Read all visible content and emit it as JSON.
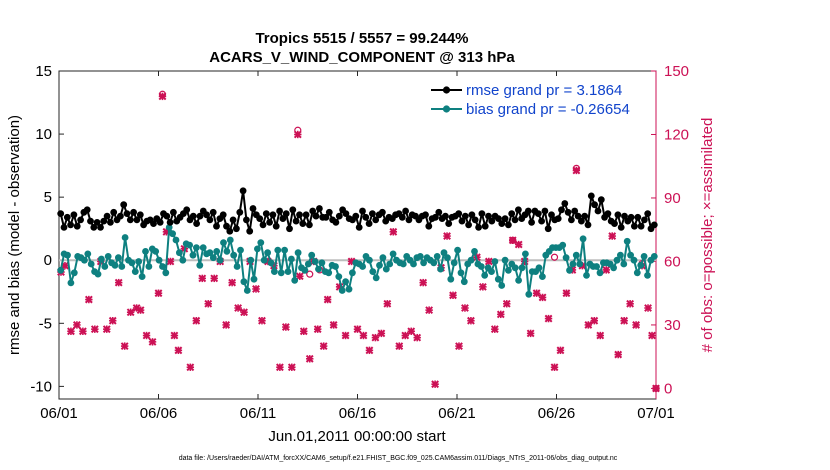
{
  "chart_data": {
    "type": "line",
    "title": "Tropics 5515 / 5557 = 99.244%",
    "subtitle": "ACARS_V_WIND_COMPONENT @ 313 hPa",
    "xlabel": "Jun.01,2011 00:00:00 start",
    "ylabel": "rmse and bias (model - observation)",
    "ylabel_right": "# of obs: o=possible; ×=assimilated",
    "footnote": "data file: /Users/raeder/DAI/ATM_forcXX/CAM6_setup/f.e21.FHIST_BGC.f09_025.CAM6assim.011/Diags_NTrS_2011-06/obs_diag_output.nc",
    "xlim": [
      0,
      30
    ],
    "ylim": [
      -11,
      15
    ],
    "ylim_right": [
      -5,
      150
    ],
    "x_ticks": [
      "06/01",
      "06/06",
      "06/11",
      "06/16",
      "06/21",
      "06/26",
      "07/01"
    ],
    "y_ticks": [
      "15",
      "10",
      "5",
      "0",
      "-5",
      "-10"
    ],
    "y_ticks_right": [
      "150",
      "120",
      "90",
      "60",
      "30",
      "0"
    ],
    "zero_line": 0,
    "colors": {
      "rmse": "#000000",
      "bias": "#0e8080",
      "obs": "#cc1155",
      "legend_text": "#1144cc"
    },
    "series": [
      {
        "name": "rmse grand pr = 3.1864",
        "values": [
          3.7,
          2.6,
          3.4,
          2.8,
          3.6,
          2.7,
          3.2,
          3.8,
          4.0,
          3.1,
          2.6,
          3.0,
          2.6,
          3.1,
          3.5,
          3.0,
          3.8,
          3.2,
          3.5,
          4.4,
          3.7,
          3.2,
          3.8,
          3.2,
          3.6,
          2.8,
          3.1,
          3.2,
          2.9,
          3.3,
          3.0,
          3.7,
          3.5,
          3.0,
          3.8,
          3.1,
          3.4,
          3.7,
          4.0,
          3.2,
          3.5,
          2.9,
          3.5,
          3.9,
          3.6,
          3.2,
          3.8,
          2.7,
          3.3,
          3.6,
          2.7,
          2.3,
          3.2,
          2.5,
          3.8,
          5.5,
          3.2,
          2.3,
          4.1,
          3.6,
          3.3,
          2.8,
          3.7,
          3.0,
          3.6,
          2.7,
          3.9,
          3.3,
          3.7,
          2.5,
          4.0,
          3.1,
          3.6,
          2.9,
          3.6,
          2.8,
          3.9,
          3.5,
          4.1,
          3.4,
          3.4,
          3.8,
          3.2,
          3.0,
          3.5,
          4.0,
          3.7,
          3.3,
          3.2,
          3.5,
          2.6,
          3.9,
          3.4,
          2.9,
          3.7,
          3.2,
          3.6,
          3.8,
          3.1,
          3.4,
          3.3,
          3.6,
          3.7,
          3.4,
          3.9,
          3.2,
          3.6,
          3.5,
          3.2,
          3.5,
          3.6,
          2.7,
          3.3,
          3.4,
          3.8,
          3.3,
          3.5,
          2.9,
          3.4,
          3.5,
          3.7,
          3.1,
          3.5,
          2.8,
          3.6,
          3.2,
          2.6,
          3.7,
          2.7,
          3.5,
          3.1,
          3.5,
          3.3,
          2.9,
          3.3,
          2.8,
          3.7,
          3.2,
          4.0,
          3.3,
          3.6,
          3.9,
          3.0,
          3.9,
          3.7,
          3.1,
          3.9,
          2.5,
          3.6,
          3.2,
          3.3,
          4.0,
          4.5,
          3.8,
          3.2,
          3.9,
          3.5,
          3.1,
          3.5,
          2.8,
          5.1,
          4.4,
          3.9,
          4.8,
          3.4,
          3.7,
          3.1,
          2.9,
          3.6,
          2.6,
          3.5,
          3.1,
          3.4,
          2.7,
          3.4,
          2.7,
          3.2,
          3.7,
          2.5,
          2.8
        ]
      },
      {
        "name": "bias grand pr = -0.26654",
        "values": [
          -0.8,
          0.5,
          0.4,
          -1.8,
          -1.0,
          0.3,
          0.2,
          0.0,
          0.5,
          -0.3,
          -0.9,
          -1.1,
          0.1,
          -0.5,
          0.3,
          -0.2,
          -0.4,
          0.2,
          -0.5,
          1.8,
          0.0,
          -0.2,
          -0.9,
          -0.1,
          -1.3,
          0.7,
          -0.5,
          0.9,
          0.7,
          0.0,
          -0.5,
          -1.0,
          2.6,
          2.1,
          1.6,
          0.6,
          0.0,
          1.3,
          1.2,
          0.4,
          1.0,
          -0.4,
          1.0,
          0.5,
          0.6,
          0.2,
          0.7,
          0.0,
          1.4,
          0.7,
          1.6,
          0.4,
          -0.5,
          0.8,
          -1.7,
          -2.4,
          0.0,
          -1.5,
          0.9,
          1.4,
          0.0,
          0.6,
          -0.2,
          -0.9,
          0.8,
          -1.0,
          0.8,
          -0.9,
          0.1,
          -1.6,
          0.6,
          -0.6,
          -0.8,
          -0.3,
          0.4,
          -0.1,
          -0.7,
          -0.2,
          -0.9,
          -1.0,
          -0.4,
          -0.5,
          -1.3,
          -2.4,
          -1.7,
          -2.3,
          -1.0,
          -0.2,
          -0.3,
          -0.5,
          0.3,
          0.0,
          -0.9,
          -1.4,
          -0.4,
          0.2,
          -0.7,
          -0.3,
          0.5,
          0.0,
          -0.2,
          -0.3,
          0.3,
          0.0,
          -0.3,
          0.2,
          0.3,
          -0.2,
          0.2,
          0.0,
          -0.2,
          0.3,
          -0.7,
          0.6,
          0.2,
          -1.5,
          -0.2,
          0.8,
          -1.0,
          -1.7,
          -0.3,
          0.0,
          0.7,
          -0.3,
          -0.5,
          -1.2,
          -0.6,
          -0.9,
          -0.1,
          -1.5,
          -2.0,
          0.0,
          -0.8,
          -0.3,
          -0.6,
          -1.6,
          -0.6,
          0.5,
          -2.7,
          -0.9,
          -0.9,
          -0.6,
          -1.3,
          0.4,
          0.7,
          1.0,
          1.0,
          1.0,
          1.2,
          0.2,
          -0.8,
          -0.3,
          0.4,
          -0.3,
          1.7,
          -1.2,
          -0.3,
          -0.5,
          -0.5,
          -1.0,
          -0.2,
          -0.2,
          -0.3,
          -0.6,
          0.0,
          0.4,
          -0.3,
          1.5,
          0.4,
          0.0,
          -1.0,
          -0.4,
          0.3,
          -1.2,
          0.0,
          0.3
        ]
      }
    ],
    "obs_assimilated": [
      {
        "x": 0.1,
        "v": 55
      },
      {
        "x": 0.3,
        "v": 58
      },
      {
        "x": 0.6,
        "v": 27
      },
      {
        "x": 0.9,
        "v": 30
      },
      {
        "x": 1.2,
        "v": 27
      },
      {
        "x": 1.5,
        "v": 42
      },
      {
        "x": 1.8,
        "v": 28
      },
      {
        "x": 2.1,
        "v": 60
      },
      {
        "x": 2.4,
        "v": 28
      },
      {
        "x": 2.7,
        "v": 32
      },
      {
        "x": 3.0,
        "v": 50
      },
      {
        "x": 3.3,
        "v": 20
      },
      {
        "x": 3.6,
        "v": 36
      },
      {
        "x": 3.9,
        "v": 38
      },
      {
        "x": 4.1,
        "v": 37
      },
      {
        "x": 4.4,
        "v": 25
      },
      {
        "x": 4.7,
        "v": 22
      },
      {
        "x": 5.0,
        "v": 45
      },
      {
        "x": 5.2,
        "v": 138
      },
      {
        "x": 5.4,
        "v": 74
      },
      {
        "x": 5.6,
        "v": 60
      },
      {
        "x": 5.8,
        "v": 25
      },
      {
        "x": 6.0,
        "v": 18
      },
      {
        "x": 6.3,
        "v": 66
      },
      {
        "x": 6.6,
        "v": 10
      },
      {
        "x": 6.9,
        "v": 32
      },
      {
        "x": 7.2,
        "v": 52
      },
      {
        "x": 7.5,
        "v": 40
      },
      {
        "x": 7.8,
        "v": 52
      },
      {
        "x": 8.1,
        "v": 60
      },
      {
        "x": 8.4,
        "v": 30
      },
      {
        "x": 8.7,
        "v": 50
      },
      {
        "x": 9.0,
        "v": 38
      },
      {
        "x": 9.3,
        "v": 36
      },
      {
        "x": 9.6,
        "v": 60
      },
      {
        "x": 9.9,
        "v": 47
      },
      {
        "x": 10.2,
        "v": 32
      },
      {
        "x": 10.5,
        "v": 60
      },
      {
        "x": 10.8,
        "v": 58
      },
      {
        "x": 11.1,
        "v": 10
      },
      {
        "x": 11.4,
        "v": 29
      },
      {
        "x": 11.7,
        "v": 10
      },
      {
        "x": 12.0,
        "v": 120
      },
      {
        "x": 12.1,
        "v": 53
      },
      {
        "x": 12.3,
        "v": 27
      },
      {
        "x": 12.6,
        "v": 14
      },
      {
        "x": 12.8,
        "v": 60
      },
      {
        "x": 13.0,
        "v": 28
      },
      {
        "x": 13.3,
        "v": 20
      },
      {
        "x": 13.5,
        "v": 42
      },
      {
        "x": 13.8,
        "v": 30
      },
      {
        "x": 14.1,
        "v": 48
      },
      {
        "x": 14.4,
        "v": 25
      },
      {
        "x": 14.7,
        "v": 60
      },
      {
        "x": 15.0,
        "v": 28
      },
      {
        "x": 15.3,
        "v": 25
      },
      {
        "x": 15.6,
        "v": 18
      },
      {
        "x": 15.9,
        "v": 24
      },
      {
        "x": 16.2,
        "v": 26
      },
      {
        "x": 16.5,
        "v": 40
      },
      {
        "x": 16.8,
        "v": 74
      },
      {
        "x": 17.1,
        "v": 20
      },
      {
        "x": 17.4,
        "v": 25
      },
      {
        "x": 17.7,
        "v": 27
      },
      {
        "x": 18.0,
        "v": 24
      },
      {
        "x": 18.3,
        "v": 50
      },
      {
        "x": 18.6,
        "v": 37
      },
      {
        "x": 18.9,
        "v": 2
      },
      {
        "x": 19.2,
        "v": 57
      },
      {
        "x": 19.5,
        "v": 72
      },
      {
        "x": 19.8,
        "v": 44
      },
      {
        "x": 20.1,
        "v": 20
      },
      {
        "x": 20.4,
        "v": 38
      },
      {
        "x": 20.7,
        "v": 32
      },
      {
        "x": 21.0,
        "v": 62
      },
      {
        "x": 21.3,
        "v": 48
      },
      {
        "x": 21.6,
        "v": 60
      },
      {
        "x": 21.9,
        "v": 28
      },
      {
        "x": 22.2,
        "v": 35
      },
      {
        "x": 22.5,
        "v": 40
      },
      {
        "x": 22.8,
        "v": 70
      },
      {
        "x": 23.1,
        "v": 68
      },
      {
        "x": 23.4,
        "v": 60
      },
      {
        "x": 23.7,
        "v": 26
      },
      {
        "x": 24.0,
        "v": 45
      },
      {
        "x": 24.3,
        "v": 43
      },
      {
        "x": 24.6,
        "v": 33
      },
      {
        "x": 24.9,
        "v": 10
      },
      {
        "x": 25.2,
        "v": 18
      },
      {
        "x": 25.5,
        "v": 45
      },
      {
        "x": 25.8,
        "v": 56
      },
      {
        "x": 26.0,
        "v": 103
      },
      {
        "x": 26.3,
        "v": 58
      },
      {
        "x": 26.6,
        "v": 30
      },
      {
        "x": 26.9,
        "v": 32
      },
      {
        "x": 27.2,
        "v": 25
      },
      {
        "x": 27.5,
        "v": 56
      },
      {
        "x": 27.8,
        "v": 72
      },
      {
        "x": 28.1,
        "v": 16
      },
      {
        "x": 28.4,
        "v": 32
      },
      {
        "x": 28.7,
        "v": 40
      },
      {
        "x": 29.0,
        "v": 30
      },
      {
        "x": 29.3,
        "v": 58
      },
      {
        "x": 29.6,
        "v": 38
      },
      {
        "x": 29.8,
        "v": 25
      },
      {
        "x": 30.0,
        "v": 0
      }
    ],
    "obs_possible": [
      {
        "x": 5.2,
        "v": 139
      },
      {
        "x": 12.0,
        "v": 122
      },
      {
        "x": 13.1,
        "v": 56
      },
      {
        "x": 22.8,
        "v": 70
      },
      {
        "x": 26.0,
        "v": 104
      },
      {
        "x": 29.3,
        "v": 59
      },
      {
        "x": 30.0,
        "v": 0
      },
      {
        "x": 12.6,
        "v": 54
      },
      {
        "x": 24.9,
        "v": 62
      }
    ]
  }
}
